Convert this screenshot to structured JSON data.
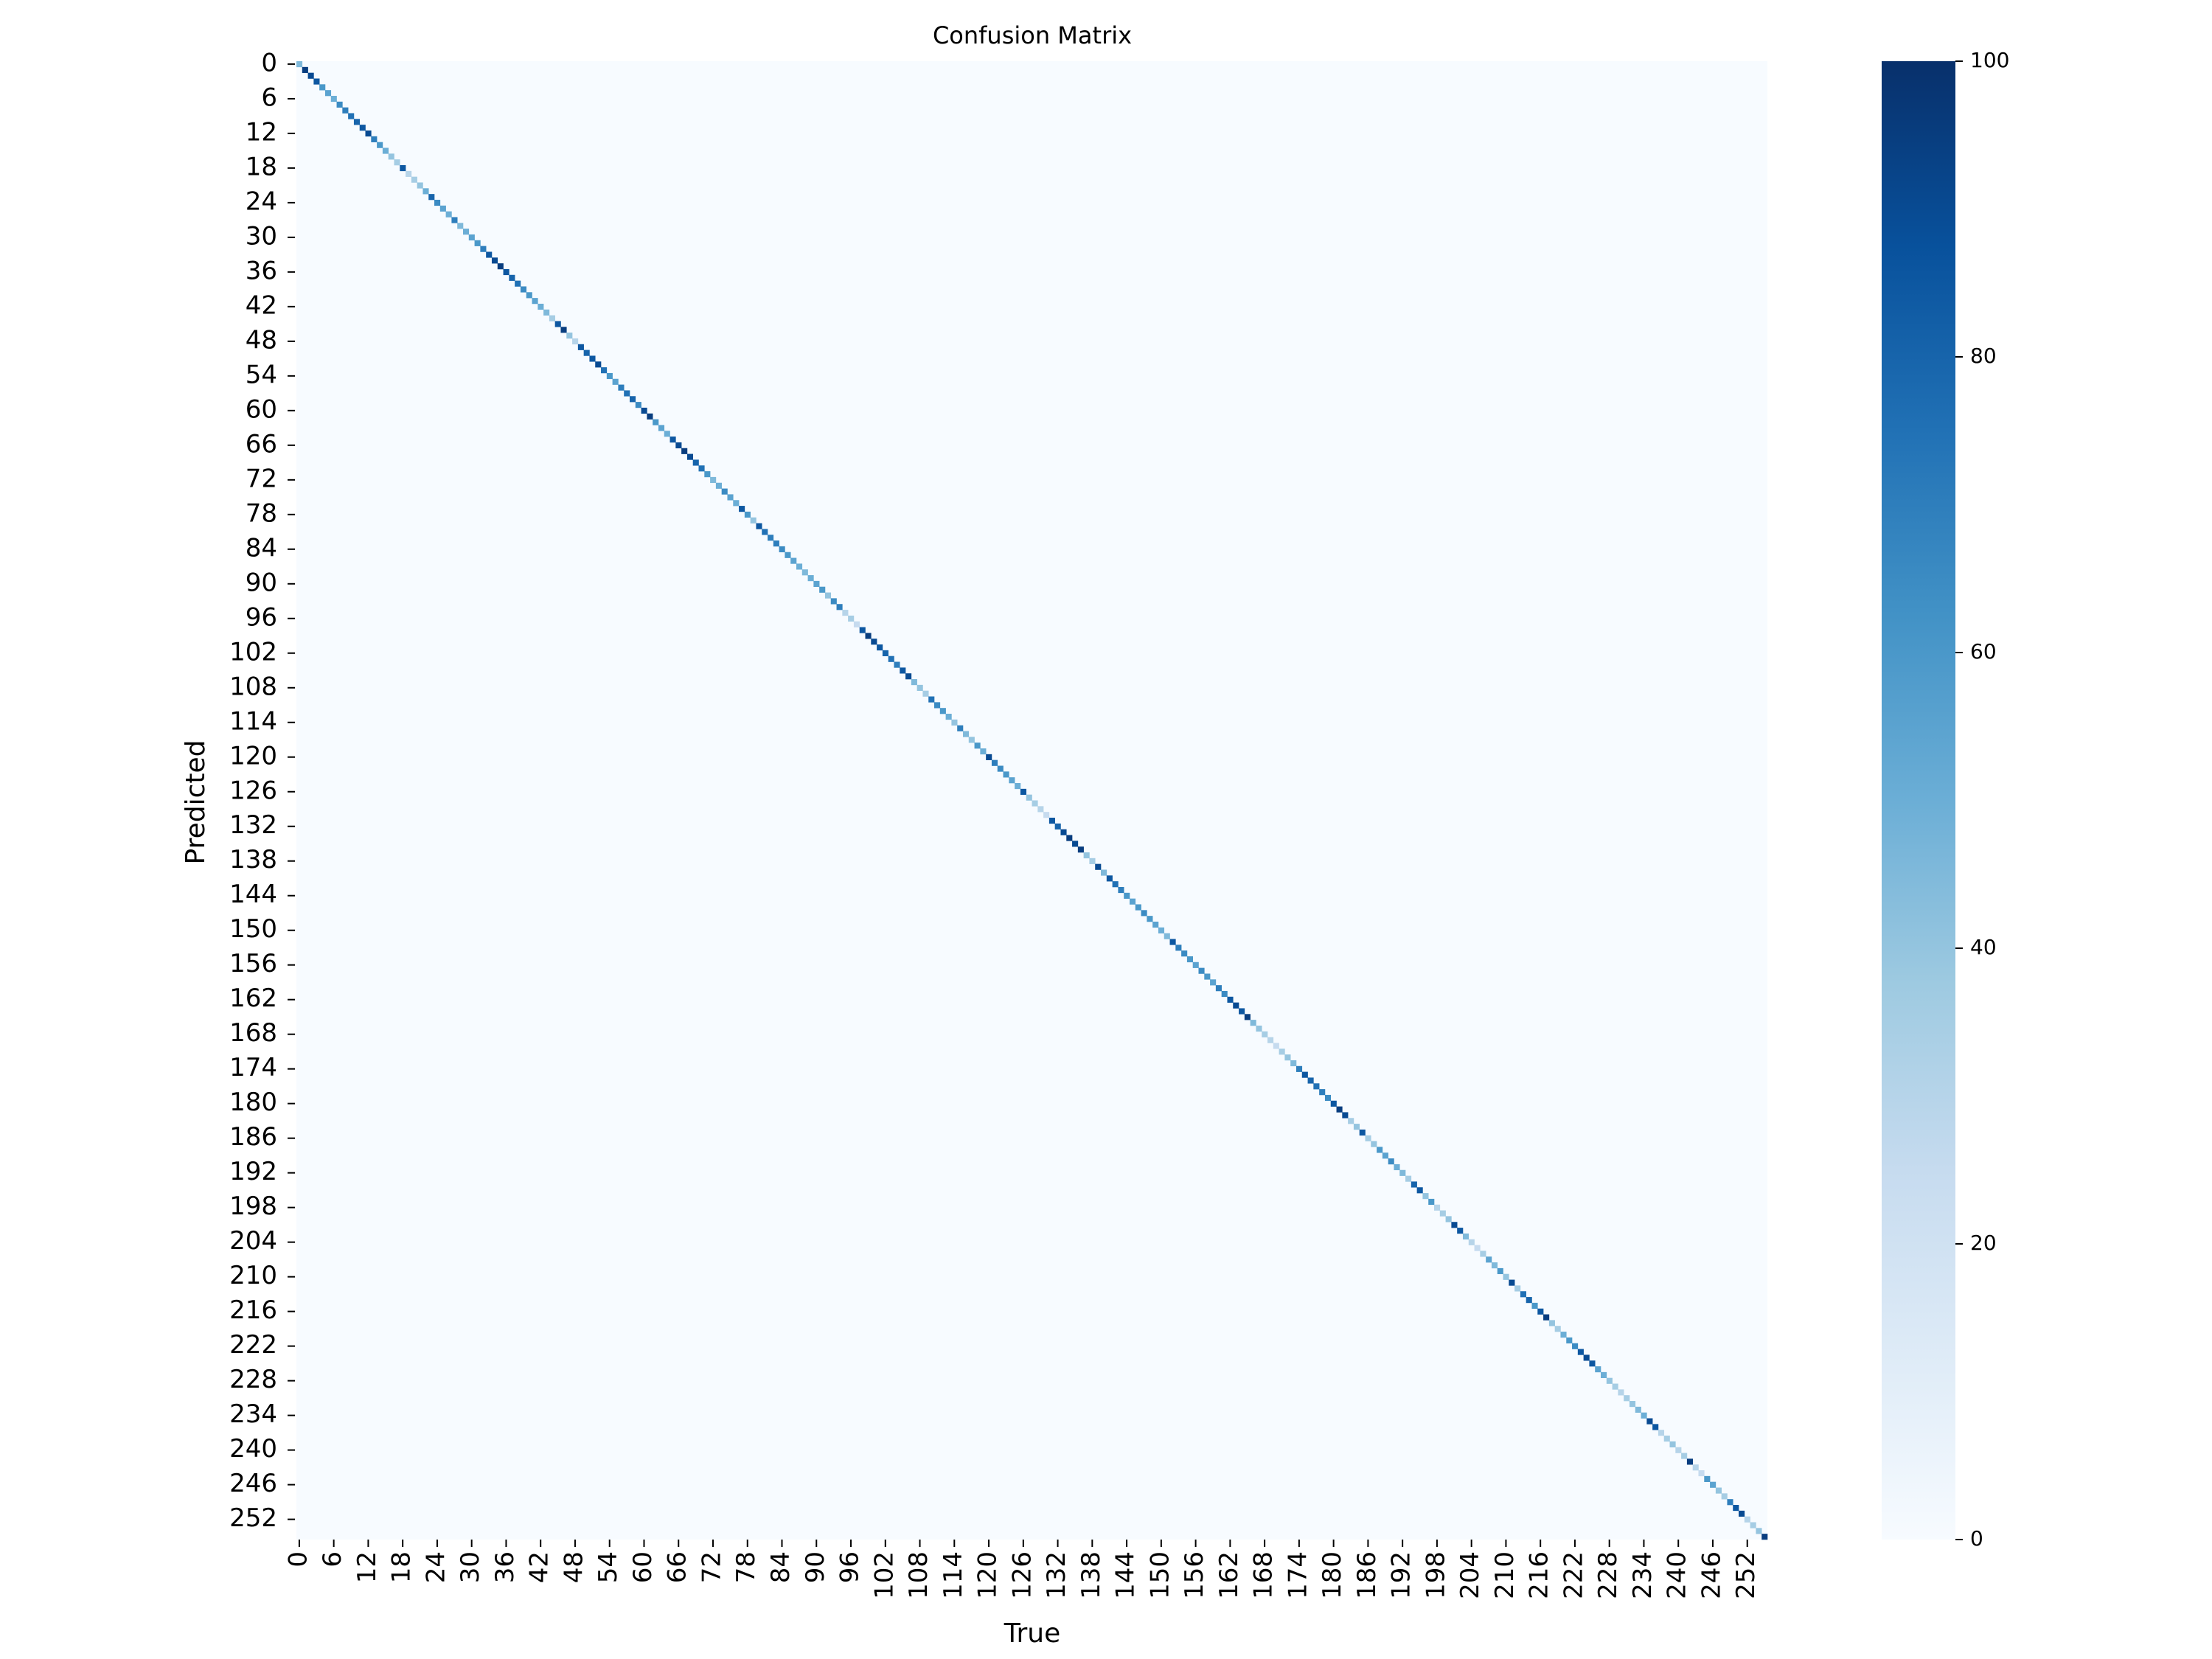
{
  "chart_data": {
    "type": "heatmap",
    "title": "Confusion Matrix",
    "xlabel": "True",
    "ylabel": "Predicted",
    "colormap": [
      "#f7fbff",
      "#deebf7",
      "#c6dbef",
      "#9ecae1",
      "#6baed6",
      "#4292c6",
      "#2171b5",
      "#08519c",
      "#08306b"
    ],
    "xlim": [
      -0.5,
      255.5
    ],
    "ylim": [
      255.5,
      -0.5
    ],
    "xticks": [
      0,
      6,
      12,
      18,
      24,
      30,
      36,
      42,
      48,
      54,
      60,
      66,
      72,
      78,
      84,
      90,
      96,
      102,
      108,
      114,
      120,
      126,
      132,
      138,
      144,
      150,
      156,
      162,
      168,
      174,
      180,
      186,
      192,
      198,
      204,
      210,
      216,
      222,
      228,
      234,
      240,
      246,
      252
    ],
    "yticks": [
      0,
      6,
      12,
      18,
      24,
      30,
      36,
      42,
      48,
      54,
      60,
      66,
      72,
      78,
      84,
      90,
      96,
      102,
      108,
      114,
      120,
      126,
      132,
      138,
      144,
      150,
      156,
      162,
      168,
      174,
      180,
      186,
      192,
      198,
      204,
      210,
      216,
      222,
      228,
      234,
      240,
      246,
      252
    ],
    "clim": [
      0,
      100
    ],
    "cticks": [
      0,
      20,
      40,
      60,
      80,
      100
    ],
    "diagonal": [
      45,
      95,
      90,
      85,
      60,
      55,
      50,
      65,
      70,
      75,
      80,
      85,
      90,
      70,
      60,
      50,
      40,
      35,
      85,
      30,
      35,
      40,
      50,
      80,
      65,
      55,
      50,
      70,
      45,
      50,
      55,
      60,
      70,
      85,
      90,
      95,
      85,
      80,
      75,
      65,
      60,
      55,
      50,
      45,
      35,
      85,
      95,
      40,
      30,
      85,
      80,
      85,
      90,
      75,
      60,
      55,
      70,
      75,
      80,
      65,
      90,
      95,
      60,
      55,
      50,
      85,
      90,
      95,
      90,
      80,
      75,
      60,
      45,
      50,
      65,
      55,
      50,
      85,
      60,
      40,
      85,
      75,
      70,
      70,
      65,
      60,
      55,
      50,
      45,
      50,
      55,
      60,
      40,
      65,
      70,
      30,
      35,
      25,
      85,
      95,
      90,
      85,
      80,
      75,
      70,
      85,
      90,
      45,
      40,
      35,
      75,
      65,
      60,
      50,
      40,
      70,
      45,
      40,
      60,
      50,
      90,
      70,
      65,
      60,
      55,
      50,
      85,
      40,
      35,
      30,
      25,
      85,
      80,
      90,
      95,
      90,
      95,
      40,
      35,
      90,
      45,
      85,
      75,
      70,
      60,
      55,
      60,
      65,
      60,
      55,
      50,
      45,
      85,
      70,
      65,
      60,
      55,
      65,
      60,
      55,
      70,
      65,
      85,
      90,
      85,
      95,
      45,
      40,
      35,
      30,
      25,
      35,
      40,
      45,
      70,
      85,
      80,
      75,
      70,
      65,
      85,
      95,
      90,
      35,
      40,
      85,
      35,
      40,
      60,
      55,
      65,
      50,
      45,
      35,
      80,
      85,
      40,
      60,
      30,
      35,
      40,
      90,
      85,
      45,
      30,
      25,
      35,
      55,
      45,
      60,
      40,
      90,
      35,
      75,
      80,
      60,
      85,
      95,
      40,
      35,
      50,
      60,
      65,
      85,
      90,
      85,
      55,
      50,
      40,
      35,
      30,
      35,
      40,
      45,
      50,
      90,
      85,
      30,
      35,
      40,
      30,
      35,
      95,
      30,
      25,
      60,
      55,
      40,
      35,
      70,
      85,
      90,
      30,
      35,
      40,
      95
    ]
  }
}
